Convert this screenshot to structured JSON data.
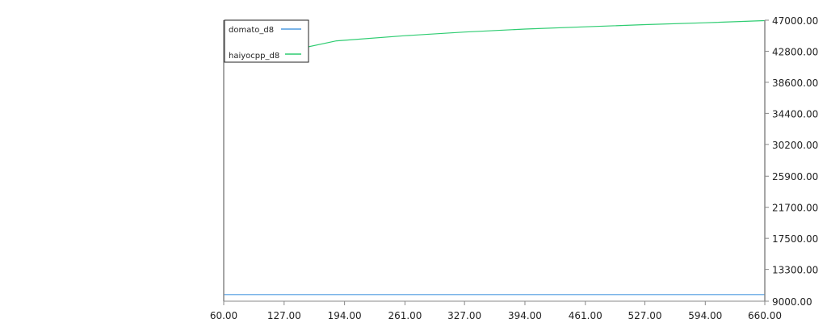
{
  "chart_data": {
    "type": "line",
    "xlim": [
      60,
      660
    ],
    "ylim": [
      9000,
      47000
    ],
    "x_ticks": [
      "60.00",
      "127.00",
      "194.00",
      "261.00",
      "327.00",
      "394.00",
      "461.00",
      "527.00",
      "594.00",
      "660.00"
    ],
    "y_ticks": [
      "47000.00",
      "42800.00",
      "38600.00",
      "34400.00",
      "30200.00",
      "25900.00",
      "21700.00",
      "17500.00",
      "13300.00",
      "9000.00"
    ],
    "y_axis_side": "right",
    "grid": false,
    "legend_position": "top-left",
    "series": [
      {
        "name": "domato_d8",
        "color": "#4e9be0",
        "x": [
          60,
          660
        ],
        "y": [
          9900,
          9900
        ]
      },
      {
        "name": "haiyocpp_d8",
        "color": "#2ecc71",
        "x": [
          150,
          185,
          261,
          327,
          394,
          461,
          527,
          594,
          660
        ],
        "y": [
          43300,
          44200,
          44900,
          45400,
          45800,
          46100,
          46400,
          46650,
          46950
        ]
      }
    ]
  }
}
